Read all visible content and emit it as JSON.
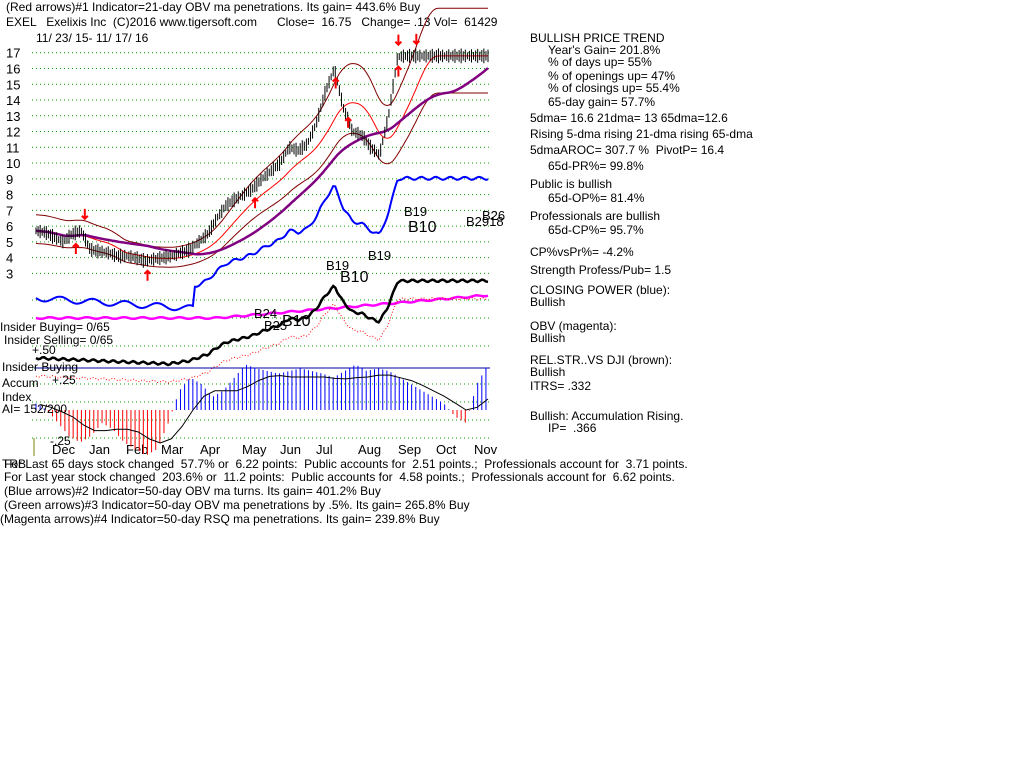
{
  "header": {
    "line1": "(Red arrows)#1 Indicator=21-day OBV ma penetrations. Its gain= 443.6% Buy",
    "line2": "EXEL   Exelixis Inc  (C)2016 www.tigersoft.com      Close=  16.75   Change= .13 Vol=  61429",
    "date_range": "11/ 23/ 15- 11/ 17/ 16"
  },
  "right_panel": [
    {
      "text": "BULLISH PRICE TREND",
      "indent": 0
    },
    {
      "text": "Year's Gain= 201.8%",
      "indent": 1
    },
    {
      "text": "% of days up= 55%",
      "indent": 1
    },
    {
      "text": "% of openings up= 47%",
      "indent": 1
    },
    {
      "text": "% of closings up= 55.4%",
      "indent": 1
    },
    {
      "text": "65-day gain= 57.7%",
      "indent": 1
    },
    {
      "text": "5dma= 16.6 21dma= 13 65dma=12.6",
      "indent": 0
    },
    {
      "text": "Rising 5-dma rising 21-dma rising 65-dma",
      "indent": 0
    },
    {
      "text": "5dmaAROC= 307.7 %  PivotP= 16.4",
      "indent": 0
    },
    {
      "text": "65d-PR%= 99.8%",
      "indent": 1
    },
    {
      "text": "Public is bullish",
      "indent": 0
    },
    {
      "text": "65d-OP%= 81.4%",
      "indent": 1
    },
    {
      "text": "Professionals are bullish",
      "indent": 0
    },
    {
      "text": "65d-CP%= 95.7%",
      "indent": 1
    },
    {
      "text": "CP%vsPr%= -4.2%",
      "indent": 0
    },
    {
      "text": "Strength Profess/Pub= 1.5",
      "indent": 0
    },
    {
      "text": "CLOSING POWER (blue):",
      "indent": 0
    },
    {
      "text": "Bullish",
      "indent": 0
    },
    {
      "text": "OBV (magenta):",
      "indent": 0
    },
    {
      "text": "Bullish",
      "indent": 0
    },
    {
      "text": "REL.STR..VS DJI (brown):",
      "indent": 0
    },
    {
      "text": "Bullish",
      "indent": 0
    },
    {
      "text": "ITRS= .332",
      "indent": 0
    },
    {
      "text": "Bullish: Accumulation Rising.",
      "indent": 0
    },
    {
      "text": "IP=  .366",
      "indent": 1
    }
  ],
  "left_labels": {
    "insider_buying": "Insider Buying= 0/65",
    "insider_selling": "Insider Selling= 0/65",
    "plus50": "+.50",
    "insider_buying2": "Insider Buying",
    "accum": "Accum",
    "plus25": "+.25",
    "index": "Index",
    "ai": "AI= 152/200",
    "minus25": "-.25",
    "overlap": "TRB"
  },
  "signals": [
    {
      "label": "B19",
      "color": "#000000"
    },
    {
      "label": "B10",
      "color": "#000000"
    },
    {
      "label": "B19",
      "color": "#000000"
    },
    {
      "label": "B10",
      "color": "#000000"
    },
    {
      "label": "B19",
      "color": "#000000"
    },
    {
      "label": "B26",
      "color": "#000000"
    },
    {
      "label": "B2918",
      "color": "#000000"
    },
    {
      "label": "B24",
      "color": "#000000"
    },
    {
      "label": "B25",
      "color": "#000000"
    },
    {
      "label": "B10",
      "color": "#000000"
    }
  ],
  "footer": [
    "For Last 65 days stock changed  57.7% or  6.22 points:  Public accounts for  2.51 points.;  Professionals account for  3.71 points.",
    "For Last year stock changed  203.6% or  11.2 points:  Public accounts for  4.58 points.;  Professionals account for  6.62 points.",
    "(Blue arrows)#2 Indicator=50-day OBV ma turns. Its gain= 401.2% Buy",
    "(Green arrows)#3 Indicator=50-day OBV ma penetrations by .5%. Its gain= 265.8% Buy",
    "(Magenta arrows)#4 Indicator=50-day RSQ ma penetrations. Its gain= 239.8% Buy"
  ],
  "colors": {
    "price": "#000000",
    "band": "#800000",
    "ma21": "#ff0000",
    "ma65": "#800080",
    "closing_power": "#0000ff",
    "obv": "#ff00ff",
    "rel_str": "#000000",
    "accum_pos": "#0000ff",
    "accum_neg": "#ff0000",
    "grid": "#00a000",
    "arrow": "#ff0000"
  },
  "chart_data": {
    "type": "line",
    "ticker": "EXEL",
    "y_ticks": [
      3,
      4,
      5,
      6,
      7,
      8,
      9,
      10,
      11,
      12,
      13,
      14,
      15,
      16,
      17
    ],
    "x_ticks": [
      "Dec",
      "Jan",
      "Feb",
      "Mar",
      "Apr",
      "May",
      "Jun",
      "Jul",
      "Aug",
      "Sep",
      "Oct",
      "Nov"
    ],
    "ylim": [
      2.2,
      17.3
    ],
    "x": [
      0,
      5,
      10,
      15,
      20,
      25,
      30,
      35,
      40,
      45,
      50,
      55,
      60,
      65,
      70,
      75,
      80,
      85,
      90,
      95,
      100,
      105,
      110,
      115,
      120,
      125,
      130,
      135,
      140,
      145,
      150,
      155,
      160,
      165,
      170,
      175,
      180,
      185,
      190,
      195,
      200,
      205,
      210,
      215,
      220,
      225,
      230,
      235,
      240,
      245,
      250
    ],
    "series": [
      {
        "name": "price",
        "values": [
          5.7,
          5.6,
          5.3,
          5.0,
          5.5,
          5.7,
          4.5,
          4.4,
          4.3,
          4.1,
          4.1,
          4.0,
          3.8,
          3.9,
          4.0,
          4.1,
          4.3,
          4.5,
          5.0,
          5.5,
          6.5,
          7.3,
          7.7,
          8.0,
          8.4,
          9.0,
          9.5,
          10.0,
          11.0,
          10.8,
          11.2,
          12.5,
          14.5,
          16.0,
          13.5,
          12.0,
          11.8,
          11.0,
          10.5,
          13.0,
          16.75,
          16.8,
          16.8,
          16.8,
          16.8,
          16.8,
          16.8,
          16.8,
          16.8,
          16.8,
          16.8
        ]
      }
    ],
    "arrows_up_days": [
      20,
      60,
      120,
      165,
      172,
      200
    ],
    "arrows_down_days": [
      25,
      200,
      210
    ],
    "accum_index": [
      0.05,
      0.0,
      -0.1,
      -0.2,
      -0.25,
      -0.2,
      -0.1,
      -0.15,
      -0.25,
      -0.3,
      -0.35,
      -0.3,
      -0.1,
      0.15,
      0.25,
      0.2,
      0.1,
      0.15,
      0.25,
      0.35,
      0.32,
      0.3,
      0.28,
      0.3,
      0.32,
      0.3,
      0.28,
      0.25,
      0.3,
      0.35,
      0.3,
      0.32,
      0.3,
      0.25,
      0.2,
      0.15,
      0.1,
      0.05,
      -0.05,
      -0.1,
      0.2,
      0.35
    ]
  }
}
